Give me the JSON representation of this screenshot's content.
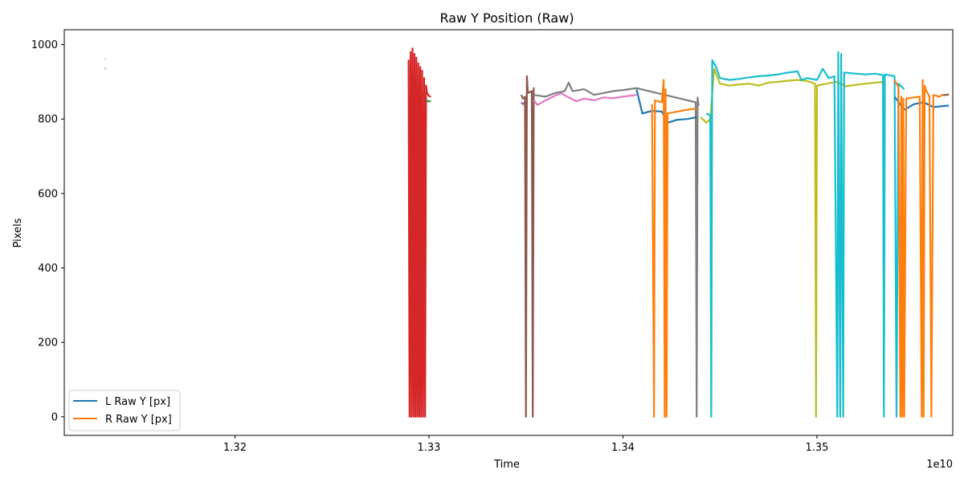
{
  "chart_data": {
    "type": "line",
    "title": "Raw Y Position (Raw)",
    "xlabel": "Time",
    "ylabel": "Pixels",
    "x_offset_label": "1e10",
    "xlim": [
      13112000000,
      13570000000
    ],
    "ylim": [
      -50,
      1040
    ],
    "x_ticks": [
      {
        "value": 13200000000,
        "label": "1.32"
      },
      {
        "value": 13300000000,
        "label": "1.33"
      },
      {
        "value": 13400000000,
        "label": "1.34"
      },
      {
        "value": 13500000000,
        "label": "1.35"
      }
    ],
    "y_ticks": [
      {
        "value": 0,
        "label": "0"
      },
      {
        "value": 200,
        "label": "200"
      },
      {
        "value": 400,
        "label": "400"
      },
      {
        "value": 600,
        "label": "600"
      },
      {
        "value": 800,
        "label": "800"
      },
      {
        "value": 1000,
        "label": "1000"
      }
    ],
    "grid": false,
    "legend": {
      "position": "lower-left",
      "entries": [
        "L Raw Y [px]",
        "R Raw Y [px]"
      ]
    },
    "series": [
      {
        "name": "L Raw Y [px]",
        "color": "#1f77b4",
        "points": [
          [
            13133000000,
            935
          ],
          [
            13133300000,
            936
          ]
        ]
      },
      {
        "name": "R Raw Y [px]",
        "color": "#ff7f0e",
        "points": [
          [
            13133000000,
            960
          ],
          [
            13133300000,
            961
          ]
        ]
      },
      {
        "color": "#2ca02c",
        "points": [
          [
            13290000000,
            930
          ],
          [
            13293000000,
            905
          ],
          [
            13295000000,
            880
          ],
          [
            13297000000,
            865
          ],
          [
            13299000000,
            848
          ],
          [
            13301000000,
            848
          ]
        ]
      },
      {
        "color": "#d62728",
        "points": [
          [
            13289500000,
            960
          ],
          [
            13290000000,
            0
          ],
          [
            13290500000,
            980
          ],
          [
            13291000000,
            0
          ],
          [
            13291500000,
            990
          ],
          [
            13292000000,
            0
          ],
          [
            13292500000,
            975
          ],
          [
            13293000000,
            0
          ],
          [
            13293500000,
            965
          ],
          [
            13294000000,
            0
          ],
          [
            13294500000,
            950
          ],
          [
            13295000000,
            0
          ],
          [
            13295500000,
            940
          ],
          [
            13296000000,
            0
          ],
          [
            13296500000,
            930
          ],
          [
            13297000000,
            0
          ],
          [
            13297500000,
            910
          ],
          [
            13298000000,
            0
          ],
          [
            13298500000,
            890
          ],
          [
            13299000000,
            870
          ],
          [
            13300000000,
            862
          ],
          [
            13301000000,
            860
          ]
        ]
      },
      {
        "color": "#9467bd",
        "points": [
          [
            13347500000,
            845
          ],
          [
            13348500000,
            840
          ],
          [
            13349500000,
            845
          ]
        ]
      },
      {
        "color": "#8c564b",
        "points": [
          [
            13347500000,
            865
          ],
          [
            13348500000,
            855
          ],
          [
            13349500000,
            860
          ],
          [
            13350000000,
            0
          ],
          [
            13350500000,
            915
          ],
          [
            13351000000,
            870
          ],
          [
            13353000000,
            875
          ],
          [
            13353500000,
            0
          ],
          [
            13354000000,
            885
          ]
        ]
      },
      {
        "color": "#e377c2",
        "points": [
          [
            13354000000,
            850
          ],
          [
            13356000000,
            838
          ],
          [
            13360000000,
            850
          ],
          [
            13364000000,
            860
          ],
          [
            13368000000,
            870
          ],
          [
            13372000000,
            858
          ],
          [
            13376000000,
            848
          ],
          [
            13380000000,
            855
          ],
          [
            13385000000,
            850
          ],
          [
            13390000000,
            858
          ],
          [
            13395000000,
            856
          ],
          [
            13400000000,
            860
          ],
          [
            13407000000,
            865
          ]
        ]
      },
      {
        "color": "#7f7f7f",
        "points": [
          [
            13354000000,
            865
          ],
          [
            13360000000,
            860
          ],
          [
            13365000000,
            870
          ],
          [
            13370000000,
            875
          ],
          [
            13372000000,
            898
          ],
          [
            13374000000,
            875
          ],
          [
            13380000000,
            880
          ],
          [
            13385000000,
            865
          ],
          [
            13390000000,
            870
          ],
          [
            13395000000,
            875
          ],
          [
            13400000000,
            878
          ],
          [
            13407000000,
            883
          ],
          [
            13437500000,
            845
          ],
          [
            13438000000,
            0
          ],
          [
            13438500000,
            858
          ],
          [
            13439000000,
            835
          ]
        ]
      },
      {
        "color": "#1f77b4",
        "points": [
          [
            13407000000,
            880
          ],
          [
            13410000000,
            815
          ],
          [
            13415000000,
            822
          ],
          [
            13420000000,
            820
          ],
          [
            13423000000,
            790
          ],
          [
            13428000000,
            798
          ],
          [
            13433000000,
            800
          ],
          [
            13438000000,
            805
          ]
        ]
      },
      {
        "color": "#ff7f0e",
        "points": [
          [
            13415000000,
            840
          ],
          [
            13416000000,
            0
          ],
          [
            13416500000,
            850
          ],
          [
            13420000000,
            845
          ],
          [
            13421000000,
            905
          ],
          [
            13421500000,
            0
          ],
          [
            13422000000,
            880
          ],
          [
            13422500000,
            0
          ],
          [
            13423000000,
            815
          ],
          [
            13428000000,
            820
          ],
          [
            13433000000,
            825
          ],
          [
            13438000000,
            828
          ]
        ]
      },
      {
        "color": "#bcbd22",
        "points": [
          [
            13440000000,
            805
          ],
          [
            13443000000,
            790
          ],
          [
            13445000000,
            800
          ],
          [
            13447000000,
            935
          ],
          [
            13450000000,
            895
          ],
          [
            13455000000,
            890
          ],
          [
            13460000000,
            893
          ],
          [
            13465000000,
            895
          ],
          [
            13470000000,
            890
          ],
          [
            13475000000,
            898
          ],
          [
            13480000000,
            900
          ],
          [
            13485000000,
            903
          ],
          [
            13490000000,
            905
          ],
          [
            13495000000,
            902
          ],
          [
            13499000000,
            895
          ],
          [
            13499500000,
            0
          ],
          [
            13500000000,
            890
          ],
          [
            13505000000,
            895
          ],
          [
            13510000000,
            900
          ],
          [
            13515000000,
            888
          ],
          [
            13520000000,
            892
          ],
          [
            13525000000,
            895
          ],
          [
            13530000000,
            898
          ],
          [
            13535000000,
            900
          ]
        ]
      },
      {
        "color": "#17becf",
        "points": [
          [
            13443000000,
            815
          ],
          [
            13445000000,
            810
          ],
          [
            13445500000,
            0
          ],
          [
            13446000000,
            958
          ],
          [
            13448000000,
            940
          ],
          [
            13450000000,
            910
          ],
          [
            13455000000,
            905
          ],
          [
            13460000000,
            908
          ],
          [
            13465000000,
            912
          ],
          [
            13470000000,
            915
          ],
          [
            13475000000,
            917
          ],
          [
            13480000000,
            920
          ],
          [
            13485000000,
            925
          ],
          [
            13490000000,
            928
          ],
          [
            13492000000,
            905
          ],
          [
            13495000000,
            910
          ],
          [
            13500000000,
            905
          ],
          [
            13503000000,
            935
          ],
          [
            13506000000,
            910
          ],
          [
            13509000000,
            915
          ],
          [
            13510500000,
            0
          ],
          [
            13511000000,
            980
          ],
          [
            13512000000,
            0
          ],
          [
            13512500000,
            975
          ],
          [
            13513500000,
            0
          ],
          [
            13514000000,
            925
          ],
          [
            13520000000,
            922
          ],
          [
            13525000000,
            920
          ],
          [
            13530000000,
            922
          ],
          [
            13534000000,
            918
          ],
          [
            13534500000,
            0
          ],
          [
            13535000000,
            920
          ],
          [
            13540000000,
            915
          ],
          [
            13541000000,
            0
          ],
          [
            13542000000,
            895
          ],
          [
            13545000000,
            880
          ]
        ]
      },
      {
        "color": "#1f77b4",
        "points": [
          [
            13540000000,
            860
          ],
          [
            13545000000,
            825
          ],
          [
            13550000000,
            840
          ],
          [
            13555000000,
            845
          ],
          [
            13560000000,
            832
          ],
          [
            13565000000,
            835
          ],
          [
            13568000000,
            836
          ]
        ]
      },
      {
        "color": "#ff7f0e",
        "points": [
          [
            13540000000,
            905
          ],
          [
            13542000000,
            885
          ],
          [
            13543000000,
            0
          ],
          [
            13543500000,
            860
          ],
          [
            13544000000,
            0
          ],
          [
            13544500000,
            855
          ],
          [
            13545000000,
            0
          ],
          [
            13546000000,
            855
          ],
          [
            13550000000,
            858
          ],
          [
            13553000000,
            860
          ],
          [
            13554000000,
            0
          ],
          [
            13554500000,
            905
          ],
          [
            13555000000,
            0
          ],
          [
            13555500000,
            890
          ],
          [
            13556000000,
            880
          ],
          [
            13558000000,
            860
          ],
          [
            13559000000,
            0
          ],
          [
            13560000000,
            865
          ],
          [
            13563000000,
            860
          ],
          [
            13565000000,
            866
          ]
        ]
      },
      {
        "color": "#8c564b",
        "points": [
          [
            13565000000,
            864
          ],
          [
            13568000000,
            866
          ]
        ]
      }
    ]
  }
}
